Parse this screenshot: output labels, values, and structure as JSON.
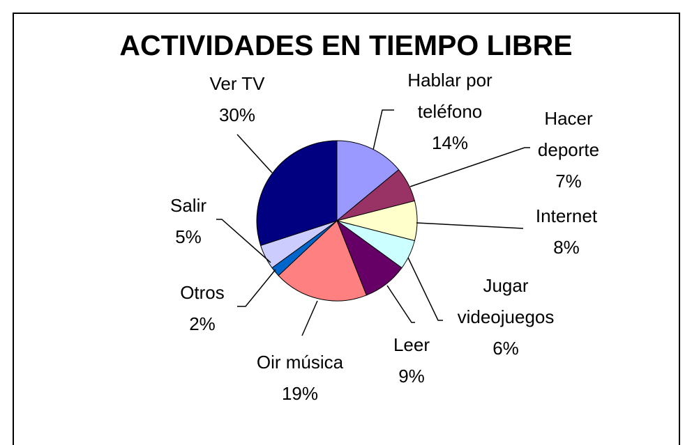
{
  "chart_data": {
    "type": "pie",
    "title": "ACTIVIDADES EN TIEMPO LIBRE",
    "categories": [
      "Hablar por teléfono",
      "Hacer deporte",
      "Internet",
      "Jugar videojuegos",
      "Leer",
      "Oir música",
      "Otros",
      "Salir",
      "Ver TV"
    ],
    "values": [
      14,
      7,
      8,
      6,
      9,
      19,
      2,
      5,
      30
    ],
    "value_labels": [
      "14%",
      "7%",
      "8%",
      "6%",
      "9%",
      "19%",
      "2%",
      "5%",
      "30%"
    ],
    "colors": [
      "#9999ff",
      "#993366",
      "#ffffcc",
      "#ccffff",
      "#660066",
      "#ff8080",
      "#0066cc",
      "#ccccff",
      "#000080"
    ]
  }
}
